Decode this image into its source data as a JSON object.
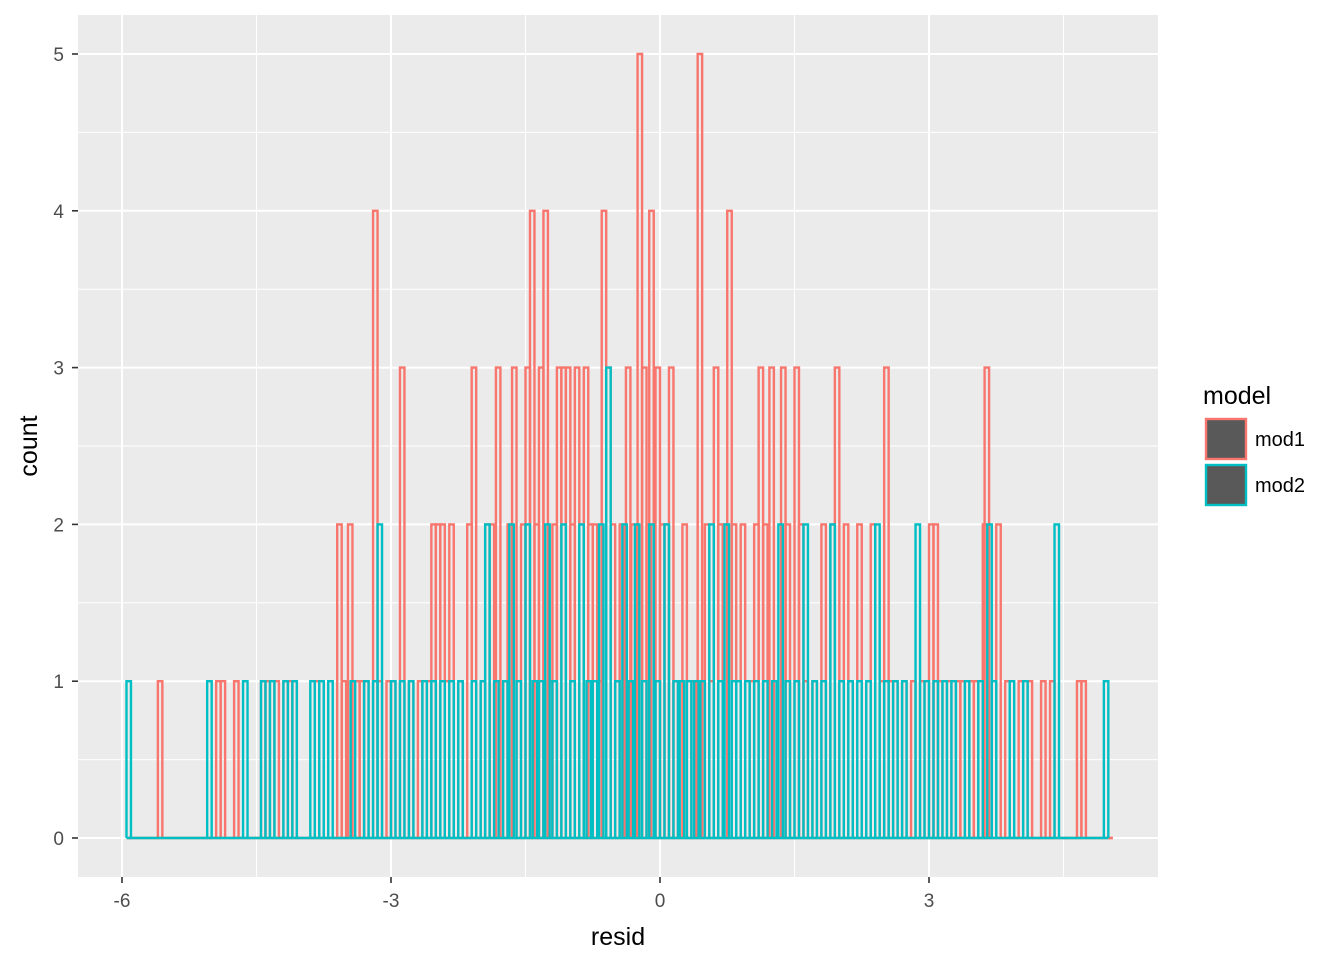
{
  "chart_data": {
    "type": "histogram",
    "geom": "step-outline",
    "xlabel": "resid",
    "ylabel": "count",
    "xlim": [
      -7.0,
      11.0
    ],
    "ylim": [
      -0.25,
      5.25
    ],
    "x_ticks": [
      -6,
      -3,
      0,
      3
    ],
    "x_tick_labels": [
      "-6",
      "-3",
      "0",
      "3"
    ],
    "y_ticks": [
      0,
      1,
      2,
      3,
      4,
      5
    ],
    "y_tick_labels": [
      "0",
      "1",
      "2",
      "3",
      "4",
      "5"
    ],
    "grid": true,
    "legend": {
      "title": "model",
      "position": "right"
    },
    "series": [
      {
        "name": "mod1",
        "color": "#F8766D",
        "bars": [
          [
            -5.95,
            0
          ],
          [
            -5.6,
            1
          ],
          [
            -5.05,
            0
          ],
          [
            -4.95,
            1
          ],
          [
            -4.9,
            1
          ],
          [
            -4.75,
            1
          ],
          [
            -4.45,
            1
          ],
          [
            -4.4,
            1
          ],
          [
            -4.3,
            1
          ],
          [
            -4.2,
            1
          ],
          [
            -4.15,
            1
          ],
          [
            -4.1,
            1
          ],
          [
            -3.85,
            1
          ],
          [
            -3.6,
            2
          ],
          [
            -3.55,
            1
          ],
          [
            -3.48,
            2
          ],
          [
            -3.4,
            1
          ],
          [
            -3.35,
            1
          ],
          [
            -3.3,
            1
          ],
          [
            -3.2,
            4
          ],
          [
            -3.15,
            1
          ],
          [
            -3.05,
            1
          ],
          [
            -3.0,
            1
          ],
          [
            -2.9,
            3
          ],
          [
            -2.8,
            1
          ],
          [
            -2.7,
            1
          ],
          [
            -2.6,
            1
          ],
          [
            -2.55,
            2
          ],
          [
            -2.5,
            2
          ],
          [
            -2.45,
            2
          ],
          [
            -2.4,
            1
          ],
          [
            -2.35,
            2
          ],
          [
            -2.25,
            1
          ],
          [
            -2.15,
            2
          ],
          [
            -2.1,
            3
          ],
          [
            -2.0,
            1
          ],
          [
            -1.95,
            2
          ],
          [
            -1.9,
            2
          ],
          [
            -1.83,
            3
          ],
          [
            -1.75,
            1
          ],
          [
            -1.7,
            2
          ],
          [
            -1.65,
            3
          ],
          [
            -1.55,
            2
          ],
          [
            -1.5,
            3
          ],
          [
            -1.45,
            4
          ],
          [
            -1.4,
            2
          ],
          [
            -1.35,
            3
          ],
          [
            -1.3,
            4
          ],
          [
            -1.25,
            1
          ],
          [
            -1.2,
            2
          ],
          [
            -1.15,
            3
          ],
          [
            -1.1,
            3
          ],
          [
            -1.05,
            3
          ],
          [
            -1.0,
            2
          ],
          [
            -0.95,
            3
          ],
          [
            -0.9,
            2
          ],
          [
            -0.85,
            3
          ],
          [
            -0.8,
            2
          ],
          [
            -0.75,
            2
          ],
          [
            -0.7,
            1
          ],
          [
            -0.65,
            4
          ],
          [
            -0.6,
            3
          ],
          [
            -0.55,
            2
          ],
          [
            -0.5,
            1
          ],
          [
            -0.45,
            2
          ],
          [
            -0.38,
            3
          ],
          [
            -0.32,
            2
          ],
          [
            -0.25,
            5
          ],
          [
            -0.2,
            3
          ],
          [
            -0.15,
            2
          ],
          [
            -0.12,
            4
          ],
          [
            -0.05,
            3
          ],
          [
            0.0,
            2
          ],
          [
            0.05,
            2
          ],
          [
            0.1,
            3
          ],
          [
            0.15,
            1
          ],
          [
            0.25,
            2
          ],
          [
            0.35,
            1
          ],
          [
            0.42,
            5
          ],
          [
            0.5,
            2
          ],
          [
            0.55,
            1
          ],
          [
            0.6,
            3
          ],
          [
            0.65,
            2
          ],
          [
            0.7,
            2
          ],
          [
            0.75,
            4
          ],
          [
            0.8,
            2
          ],
          [
            0.9,
            2
          ],
          [
            1.0,
            1
          ],
          [
            1.05,
            2
          ],
          [
            1.1,
            3
          ],
          [
            1.15,
            2
          ],
          [
            1.22,
            3
          ],
          [
            1.35,
            3
          ],
          [
            1.4,
            2
          ],
          [
            1.5,
            3
          ],
          [
            1.55,
            2
          ],
          [
            1.6,
            1
          ],
          [
            1.7,
            1
          ],
          [
            1.8,
            2
          ],
          [
            1.9,
            2
          ],
          [
            1.95,
            3
          ],
          [
            2.05,
            2
          ],
          [
            2.1,
            1
          ],
          [
            2.2,
            2
          ],
          [
            2.3,
            1
          ],
          [
            2.35,
            2
          ],
          [
            2.45,
            1
          ],
          [
            2.5,
            3
          ],
          [
            2.55,
            1
          ],
          [
            2.6,
            1
          ],
          [
            2.7,
            1
          ],
          [
            2.8,
            1
          ],
          [
            2.9,
            1
          ],
          [
            3.0,
            2
          ],
          [
            3.05,
            2
          ],
          [
            3.1,
            1
          ],
          [
            3.2,
            1
          ],
          [
            3.3,
            1
          ],
          [
            3.35,
            1
          ],
          [
            3.45,
            1
          ],
          [
            3.5,
            1
          ],
          [
            3.6,
            2
          ],
          [
            3.62,
            3
          ],
          [
            3.75,
            2
          ],
          [
            3.85,
            1
          ],
          [
            4.0,
            1
          ],
          [
            4.1,
            1
          ],
          [
            4.25,
            1
          ],
          [
            4.35,
            1
          ],
          [
            4.5,
            0
          ],
          [
            4.65,
            1
          ],
          [
            4.7,
            1
          ],
          [
            5.0,
            0
          ]
        ]
      },
      {
        "name": "mod2",
        "color": "#00BFC4",
        "bars": [
          [
            -5.95,
            1
          ],
          [
            -5.05,
            1
          ],
          [
            -4.65,
            1
          ],
          [
            -4.45,
            1
          ],
          [
            -4.35,
            1
          ],
          [
            -4.2,
            1
          ],
          [
            -4.1,
            1
          ],
          [
            -3.9,
            1
          ],
          [
            -3.8,
            1
          ],
          [
            -3.7,
            1
          ],
          [
            -3.45,
            1
          ],
          [
            -3.3,
            1
          ],
          [
            -3.2,
            1
          ],
          [
            -3.15,
            2
          ],
          [
            -3.0,
            1
          ],
          [
            -2.9,
            1
          ],
          [
            -2.8,
            1
          ],
          [
            -2.65,
            1
          ],
          [
            -2.55,
            1
          ],
          [
            -2.45,
            1
          ],
          [
            -2.35,
            1
          ],
          [
            -2.25,
            1
          ],
          [
            -2.1,
            1
          ],
          [
            -2.0,
            1
          ],
          [
            -1.95,
            2
          ],
          [
            -1.85,
            1
          ],
          [
            -1.75,
            1
          ],
          [
            -1.68,
            2
          ],
          [
            -1.6,
            1
          ],
          [
            -1.5,
            2
          ],
          [
            -1.42,
            1
          ],
          [
            -1.35,
            1
          ],
          [
            -1.28,
            2
          ],
          [
            -1.2,
            1
          ],
          [
            -1.1,
            2
          ],
          [
            -1.0,
            1
          ],
          [
            -0.9,
            2
          ],
          [
            -0.82,
            1
          ],
          [
            -0.75,
            1
          ],
          [
            -0.68,
            2
          ],
          [
            -0.6,
            3
          ],
          [
            -0.5,
            1
          ],
          [
            -0.42,
            2
          ],
          [
            -0.35,
            1
          ],
          [
            -0.28,
            2
          ],
          [
            -0.2,
            1
          ],
          [
            -0.12,
            2
          ],
          [
            -0.05,
            1
          ],
          [
            0.05,
            2
          ],
          [
            0.15,
            1
          ],
          [
            0.22,
            1
          ],
          [
            0.3,
            1
          ],
          [
            0.38,
            1
          ],
          [
            0.45,
            1
          ],
          [
            0.55,
            2
          ],
          [
            0.65,
            1
          ],
          [
            0.72,
            2
          ],
          [
            0.8,
            1
          ],
          [
            0.85,
            1
          ],
          [
            0.95,
            1
          ],
          [
            1.05,
            1
          ],
          [
            1.15,
            1
          ],
          [
            1.25,
            1
          ],
          [
            1.32,
            2
          ],
          [
            1.4,
            1
          ],
          [
            1.5,
            1
          ],
          [
            1.6,
            2
          ],
          [
            1.7,
            1
          ],
          [
            1.8,
            1
          ],
          [
            1.9,
            2
          ],
          [
            2.0,
            1
          ],
          [
            2.1,
            1
          ],
          [
            2.2,
            1
          ],
          [
            2.3,
            1
          ],
          [
            2.4,
            2
          ],
          [
            2.5,
            1
          ],
          [
            2.6,
            1
          ],
          [
            2.7,
            1
          ],
          [
            2.85,
            2
          ],
          [
            2.95,
            1
          ],
          [
            3.05,
            1
          ],
          [
            3.15,
            1
          ],
          [
            3.25,
            1
          ],
          [
            3.4,
            1
          ],
          [
            3.55,
            1
          ],
          [
            3.65,
            2
          ],
          [
            3.7,
            1
          ],
          [
            3.9,
            1
          ],
          [
            4.05,
            1
          ],
          [
            4.4,
            2
          ],
          [
            4.95,
            1
          ]
        ]
      }
    ]
  }
}
